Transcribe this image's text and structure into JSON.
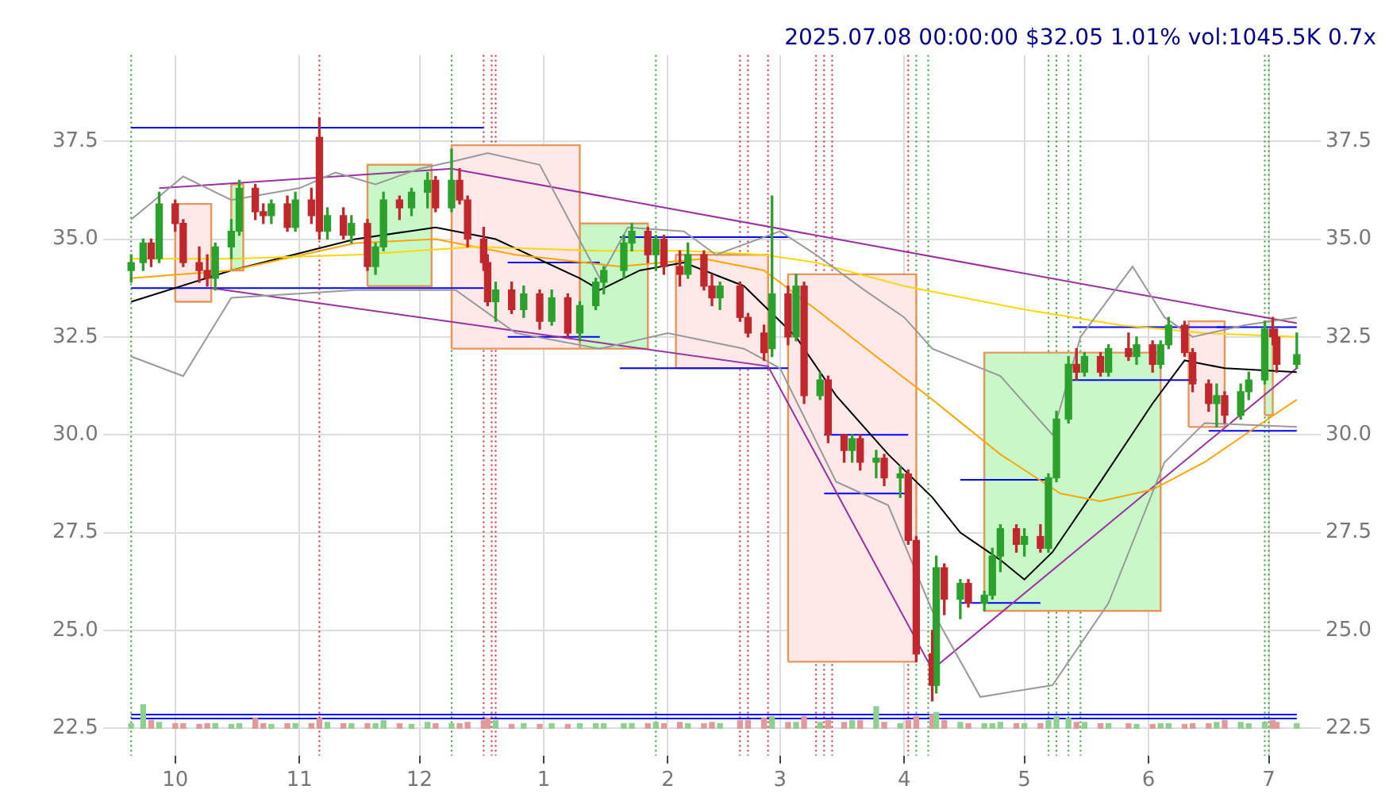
{
  "chart_data": {
    "type": "candlestick",
    "title": "2025.07.08 00:00:00 $32.05 1.01% vol:1045.5K 0.7x",
    "x": [
      "2024-09-20",
      "2024-09-23",
      "2024-09-25",
      "2024-09-27",
      "2024-10-01",
      "2024-10-03",
      "2024-10-07",
      "2024-10-09",
      "2024-10-11",
      "2024-10-15",
      "2024-10-17",
      "2024-10-21",
      "2024-10-23",
      "2024-10-25",
      "2024-10-29",
      "2024-10-31",
      "2024-11-04",
      "2024-11-06",
      "2024-11-08",
      "2024-11-12",
      "2024-11-14",
      "2024-11-18",
      "2024-11-20",
      "2024-11-22",
      "2024-11-26",
      "2024-11-29",
      "2024-12-03",
      "2024-12-05",
      "2024-12-09",
      "2024-12-11",
      "2024-12-13",
      "2024-12-17",
      "2024-12-18",
      "2024-12-20",
      "2024-12-24",
      "2024-12-27",
      "2024-12-31",
      "2025-01-03",
      "2025-01-07",
      "2025-01-10",
      "2025-01-14",
      "2025-01-16",
      "2025-01-21",
      "2025-01-23",
      "2025-01-27",
      "2025-01-29",
      "2025-01-31",
      "2025-02-04",
      "2025-02-06",
      "2025-02-10",
      "2025-02-12",
      "2025-02-14",
      "2025-02-19",
      "2025-02-21",
      "2025-02-25",
      "2025-02-27",
      "2025-03-03",
      "2025-03-05",
      "2025-03-07",
      "2025-03-11",
      "2025-03-13",
      "2025-03-17",
      "2025-03-19",
      "2025-03-21",
      "2025-03-25",
      "2025-03-27",
      "2025-03-31",
      "2025-04-02",
      "2025-04-04",
      "2025-04-08",
      "2025-04-09",
      "2025-04-11",
      "2025-04-15",
      "2025-04-17",
      "2025-04-21",
      "2025-04-23",
      "2025-04-25",
      "2025-04-29",
      "2025-05-01",
      "2025-05-05",
      "2025-05-07",
      "2025-05-09",
      "2025-05-12",
      "2025-05-14",
      "2025-05-16",
      "2025-05-20",
      "2025-05-22",
      "2025-05-27",
      "2025-05-29",
      "2025-06-02",
      "2025-06-04",
      "2025-06-06",
      "2025-06-10",
      "2025-06-12",
      "2025-06-16",
      "2025-06-18",
      "2025-06-20",
      "2025-06-24",
      "2025-06-26",
      "2025-06-30",
      "2025-07-02",
      "2025-07-03",
      "2025-07-08"
    ],
    "ohlc": [
      [
        34.2,
        34.6,
        33.9,
        34.4
      ],
      [
        34.4,
        35.0,
        34.2,
        34.9
      ],
      [
        34.9,
        35.0,
        34.3,
        34.5
      ],
      [
        34.5,
        36.2,
        34.4,
        35.9
      ],
      [
        35.9,
        36.0,
        35.2,
        35.4
      ],
      [
        35.4,
        35.5,
        34.3,
        34.4
      ],
      [
        34.4,
        34.8,
        33.9,
        34.2
      ],
      [
        34.2,
        34.6,
        33.8,
        34.0
      ],
      [
        34.0,
        34.9,
        33.7,
        34.8
      ],
      [
        34.8,
        35.5,
        34.5,
        35.2
      ],
      [
        35.2,
        36.5,
        35.1,
        36.3
      ],
      [
        36.3,
        36.4,
        35.5,
        35.7
      ],
      [
        35.7,
        35.9,
        35.4,
        35.6
      ],
      [
        35.6,
        36.0,
        35.4,
        35.9
      ],
      [
        35.9,
        36.1,
        35.2,
        35.3
      ],
      [
        35.3,
        36.2,
        35.2,
        36.0
      ],
      [
        36.0,
        36.3,
        35.4,
        35.6
      ],
      [
        37.6,
        38.1,
        35.0,
        35.2
      ],
      [
        35.2,
        35.8,
        35.0,
        35.6
      ],
      [
        35.6,
        35.8,
        35.0,
        35.1
      ],
      [
        35.1,
        35.6,
        34.9,
        35.4
      ],
      [
        35.4,
        35.5,
        34.2,
        34.3
      ],
      [
        34.3,
        34.9,
        34.1,
        34.8
      ],
      [
        34.8,
        36.2,
        34.7,
        36.0
      ],
      [
        36.0,
        36.1,
        35.5,
        35.8
      ],
      [
        35.8,
        36.3,
        35.6,
        36.2
      ],
      [
        36.2,
        36.7,
        35.8,
        36.5
      ],
      [
        36.5,
        36.6,
        35.7,
        35.8
      ],
      [
        35.8,
        37.3,
        35.7,
        36.5
      ],
      [
        36.5,
        36.8,
        35.9,
        36.0
      ],
      [
        36.0,
        36.1,
        34.8,
        35.0
      ],
      [
        35.0,
        35.3,
        34.2,
        34.4
      ],
      [
        34.4,
        34.6,
        33.3,
        33.4
      ],
      [
        33.4,
        33.9,
        32.9,
        33.7
      ],
      [
        33.7,
        33.9,
        33.1,
        33.2
      ],
      [
        33.2,
        33.8,
        33.0,
        33.6
      ],
      [
        33.6,
        33.7,
        32.7,
        32.9
      ],
      [
        32.9,
        33.7,
        32.8,
        33.5
      ],
      [
        33.5,
        33.6,
        32.5,
        32.6
      ],
      [
        32.6,
        33.4,
        32.4,
        33.3
      ],
      [
        33.3,
        34.0,
        33.2,
        33.9
      ],
      [
        33.9,
        34.3,
        33.6,
        34.2
      ],
      [
        34.2,
        35.1,
        34.0,
        34.9
      ],
      [
        34.9,
        35.4,
        34.7,
        35.2
      ],
      [
        35.2,
        35.3,
        34.4,
        34.6
      ],
      [
        34.6,
        35.1,
        34.2,
        35.0
      ],
      [
        35.0,
        35.1,
        34.1,
        34.3
      ],
      [
        34.3,
        34.7,
        33.8,
        34.1
      ],
      [
        34.1,
        34.9,
        34.0,
        34.6
      ],
      [
        34.6,
        34.7,
        33.7,
        33.8
      ],
      [
        33.8,
        34.1,
        33.3,
        33.5
      ],
      [
        33.5,
        33.9,
        33.2,
        33.8
      ],
      [
        33.8,
        33.9,
        32.9,
        33.0
      ],
      [
        33.0,
        33.1,
        32.5,
        32.6
      ],
      [
        32.6,
        32.8,
        31.9,
        32.1
      ],
      [
        32.2,
        36.1,
        32.0,
        33.6
      ],
      [
        33.6,
        33.8,
        32.3,
        32.5
      ],
      [
        32.5,
        34.1,
        32.4,
        33.8
      ],
      [
        33.8,
        33.9,
        30.8,
        31.0
      ],
      [
        31.0,
        31.6,
        30.9,
        31.4
      ],
      [
        31.4,
        31.5,
        29.8,
        30.0
      ],
      [
        30.0,
        30.0,
        29.3,
        29.6
      ],
      [
        29.6,
        30.0,
        29.3,
        29.9
      ],
      [
        29.9,
        30.0,
        29.1,
        29.3
      ],
      [
        29.3,
        29.6,
        28.9,
        29.4
      ],
      [
        29.4,
        29.5,
        28.7,
        28.9
      ],
      [
        28.9,
        29.2,
        28.4,
        29.0
      ],
      [
        29.0,
        29.1,
        27.2,
        27.3
      ],
      [
        27.3,
        27.4,
        24.2,
        24.4
      ],
      [
        24.4,
        25.0,
        23.2,
        23.6
      ],
      [
        23.6,
        26.9,
        23.4,
        26.6
      ],
      [
        26.6,
        26.7,
        25.4,
        25.8
      ],
      [
        25.8,
        26.3,
        25.3,
        26.2
      ],
      [
        26.2,
        26.3,
        25.6,
        25.7
      ],
      [
        25.7,
        26.0,
        25.5,
        25.9
      ],
      [
        25.9,
        27.1,
        25.8,
        26.9
      ],
      [
        26.9,
        27.7,
        26.5,
        27.6
      ],
      [
        27.6,
        27.7,
        27.0,
        27.2
      ],
      [
        27.2,
        27.6,
        26.9,
        27.4
      ],
      [
        27.4,
        27.7,
        27.0,
        27.1
      ],
      [
        27.1,
        29.0,
        27.0,
        28.9
      ],
      [
        28.9,
        30.6,
        28.8,
        30.4
      ],
      [
        30.4,
        32.0,
        30.3,
        31.8
      ],
      [
        31.8,
        32.2,
        31.4,
        31.6
      ],
      [
        31.6,
        32.1,
        31.5,
        32.0
      ],
      [
        32.0,
        32.1,
        31.5,
        31.6
      ],
      [
        31.6,
        32.3,
        31.5,
        32.2
      ],
      [
        32.2,
        32.6,
        31.9,
        32.0
      ],
      [
        32.0,
        32.5,
        31.8,
        32.3
      ],
      [
        32.3,
        32.4,
        31.6,
        31.8
      ],
      [
        31.8,
        32.4,
        31.7,
        32.3
      ],
      [
        32.3,
        33.0,
        32.2,
        32.8
      ],
      [
        32.8,
        32.9,
        32.0,
        32.1
      ],
      [
        32.1,
        32.2,
        31.1,
        31.3
      ],
      [
        31.3,
        31.4,
        30.6,
        30.8
      ],
      [
        30.8,
        31.3,
        30.2,
        31.0
      ],
      [
        31.0,
        31.1,
        30.3,
        30.5
      ],
      [
        30.5,
        31.3,
        30.4,
        31.1
      ],
      [
        31.1,
        31.6,
        30.9,
        31.4
      ],
      [
        31.4,
        32.9,
        31.3,
        32.7
      ],
      [
        32.7,
        33.0,
        32.3,
        32.5
      ],
      [
        32.5,
        32.7,
        31.6,
        31.8
      ],
      [
        31.8,
        32.6,
        31.7,
        32.05
      ]
    ],
    "series": [
      {
        "type": "area",
        "color": "#ffe8e8",
        "x": [
          "2024-10-01",
          "2024-10-01",
          "2024-10-10",
          "2024-10-10",
          "2024-10-01"
        ],
        "values": [
          33.4,
          35.9,
          35.9,
          33.4,
          33.4
        ]
      },
      {
        "type": "area",
        "color": "#c8f8c8",
        "x": [
          "2024-10-15",
          "2024-10-15",
          "2024-10-18",
          "2024-10-18",
          "2024-10-15"
        ],
        "values": [
          34.2,
          36.4,
          36.4,
          34.2,
          34.2
        ]
      },
      {
        "type": "area",
        "color": "#c8f8c8",
        "x": [
          "2024-11-18",
          "2024-11-18",
          "2024-12-04",
          "2024-12-04",
          "2024-11-18"
        ],
        "values": [
          33.8,
          36.9,
          36.9,
          33.8,
          33.8
        ]
      },
      {
        "type": "area",
        "color": "#ffe8e8",
        "x": [
          "2024-12-09",
          "2024-12-09",
          "2025-01-10",
          "2025-01-10",
          "2024-12-09"
        ],
        "values": [
          32.2,
          37.4,
          37.4,
          32.2,
          32.2
        ]
      },
      {
        "type": "area",
        "color": "#c8f8c8",
        "x": [
          "2025-01-10",
          "2025-01-10",
          "2025-01-27",
          "2025-01-27",
          "2025-01-10"
        ],
        "values": [
          32.2,
          35.4,
          35.4,
          32.2,
          32.2
        ]
      },
      {
        "type": "area",
        "color": "#ffe8e8",
        "x": [
          "2025-02-03",
          "2025-02-03",
          "2025-02-26",
          "2025-02-26",
          "2025-02-03"
        ],
        "values": [
          31.7,
          34.6,
          34.6,
          31.7,
          31.7
        ]
      },
      {
        "type": "area",
        "color": "#ffe8e8",
        "x": [
          "2025-03-03",
          "2025-03-03",
          "2025-04-04",
          "2025-04-04",
          "2025-03-03"
        ],
        "values": [
          24.2,
          34.1,
          34.1,
          24.2,
          24.2
        ]
      },
      {
        "type": "area",
        "color": "#c8f8c8",
        "x": [
          "2025-04-21",
          "2025-04-21",
          "2025-06-04",
          "2025-06-04",
          "2025-04-21"
        ],
        "values": [
          25.5,
          32.1,
          32.1,
          25.5,
          25.5
        ]
      },
      {
        "type": "area",
        "color": "#ffe8e8",
        "x": [
          "2025-06-11",
          "2025-06-11",
          "2025-06-20",
          "2025-06-20",
          "2025-06-11"
        ],
        "values": [
          30.2,
          32.9,
          32.9,
          30.2,
          30.2
        ]
      },
      {
        "type": "area",
        "color": "#c8f8c8",
        "x": [
          "2025-06-30",
          "2025-06-30",
          "2025-07-02",
          "2025-07-02",
          "2025-06-30"
        ],
        "values": [
          30.5,
          32.9,
          32.9,
          30.5,
          30.5
        ]
      },
      {
        "type": "line",
        "color": "#999999",
        "x": [
          "2024-09-20",
          "2024-10-03",
          "2024-10-15",
          "2024-11-01",
          "2024-11-10",
          "2024-11-20",
          "2024-12-01",
          "2024-12-10",
          "2024-12-18",
          "2024-12-31",
          "2025-01-15",
          "2025-01-22",
          "2025-02-05",
          "2025-02-13",
          "2025-03-01",
          "2025-03-10",
          "2025-03-22",
          "2025-04-01",
          "2025-04-08",
          "2025-04-25",
          "2025-05-08",
          "2025-05-15",
          "2025-05-28",
          "2025-06-05",
          "2025-06-12",
          "2025-06-25",
          "2025-07-08"
        ],
        "values": [
          35.5,
          36.6,
          36.0,
          36.3,
          36.7,
          36.4,
          36.8,
          37.0,
          37.2,
          36.9,
          34.0,
          35.3,
          35.2,
          34.6,
          35.2,
          34.6,
          33.7,
          33.0,
          32.2,
          31.5,
          30.0,
          32.5,
          34.3,
          33.0,
          32.5,
          32.8,
          33.0
        ]
      },
      {
        "type": "line",
        "color": "#999999",
        "x": [
          "2024-09-20",
          "2024-10-03",
          "2024-10-15",
          "2024-11-15",
          "2024-12-10",
          "2024-12-25",
          "2025-01-15",
          "2025-02-01",
          "2025-02-20",
          "2025-03-01",
          "2025-03-15",
          "2025-03-28",
          "2025-04-08",
          "2025-04-20",
          "2025-05-08",
          "2025-05-22",
          "2025-06-05",
          "2025-06-15",
          "2025-07-08"
        ],
        "values": [
          32.0,
          31.5,
          33.5,
          33.7,
          33.7,
          32.6,
          32.2,
          32.6,
          32.2,
          31.7,
          28.8,
          28.2,
          25.5,
          23.3,
          23.6,
          25.7,
          29.3,
          30.3,
          30.2
        ]
      },
      {
        "type": "line",
        "color": "#ffd700",
        "x": [
          "2024-09-20",
          "2024-10-15",
          "2024-11-15",
          "2024-12-15",
          "2025-01-15",
          "2025-02-05",
          "2025-02-25",
          "2025-03-10",
          "2025-04-01",
          "2025-05-01",
          "2025-05-25",
          "2025-06-15",
          "2025-07-08"
        ],
        "values": [
          34.5,
          34.5,
          34.6,
          34.8,
          34.7,
          34.7,
          34.6,
          34.4,
          33.8,
          33.2,
          32.8,
          32.6,
          32.5
        ]
      },
      {
        "type": "line",
        "color": "#ffa500",
        "x": [
          "2024-09-20",
          "2024-10-15",
          "2024-11-15",
          "2024-12-05",
          "2024-12-25",
          "2025-01-20",
          "2025-02-10",
          "2025-02-25",
          "2025-03-10",
          "2025-03-25",
          "2025-04-08",
          "2025-04-25",
          "2025-05-10",
          "2025-05-20",
          "2025-06-02",
          "2025-06-15",
          "2025-06-25",
          "2025-07-08"
        ],
        "values": [
          34.0,
          34.2,
          34.9,
          35.0,
          34.6,
          34.3,
          34.5,
          34.2,
          33.2,
          32.0,
          30.9,
          29.5,
          28.5,
          28.3,
          28.6,
          29.3,
          30.0,
          30.9
        ]
      },
      {
        "type": "line",
        "color": "#000000",
        "x": [
          "2024-09-20",
          "2024-10-15",
          "2024-11-15",
          "2024-12-05",
          "2024-12-20",
          "2025-01-10",
          "2025-01-15",
          "2025-01-25",
          "2025-02-05",
          "2025-02-20",
          "2025-03-05",
          "2025-03-15",
          "2025-03-28",
          "2025-04-08",
          "2025-04-15",
          "2025-04-25",
          "2025-05-01",
          "2025-05-08",
          "2025-05-20",
          "2025-06-02",
          "2025-06-10",
          "2025-06-20",
          "2025-07-08"
        ],
        "values": [
          33.4,
          34.2,
          35.0,
          35.3,
          35.0,
          34.0,
          33.7,
          34.2,
          34.4,
          33.8,
          32.5,
          31.0,
          29.5,
          28.4,
          27.5,
          26.8,
          26.3,
          27.0,
          28.8,
          30.8,
          31.9,
          31.7,
          31.6
        ]
      },
      {
        "type": "line",
        "color": "#9b30a0",
        "x": [
          "2024-09-27",
          "2024-12-09",
          "2025-07-08"
        ],
        "values": [
          36.3,
          36.8,
          32.85
        ]
      },
      {
        "type": "line",
        "color": "#9b30a0",
        "x": [
          "2024-10-10",
          "2025-02-26",
          "2025-04-08",
          "2025-07-08"
        ],
        "values": [
          33.75,
          31.75,
          24.0,
          31.7
        ]
      },
      {
        "type": "line",
        "color": "#0000ff",
        "x": [
          "2024-09-20",
          "2024-12-17"
        ],
        "values": [
          37.85,
          37.85
        ]
      },
      {
        "type": "line",
        "color": "#0000ff",
        "x": [
          "2024-09-20",
          "2024-12-17"
        ],
        "values": [
          33.75,
          33.75
        ]
      },
      {
        "type": "line",
        "color": "#0000ff",
        "x": [
          "2024-12-23",
          "2025-01-15"
        ],
        "values": [
          34.4,
          34.4
        ]
      },
      {
        "type": "line",
        "color": "#0000ff",
        "x": [
          "2024-12-23",
          "2025-01-15"
        ],
        "values": [
          32.5,
          32.5
        ]
      },
      {
        "type": "line",
        "color": "#0000ff",
        "x": [
          "2025-01-20",
          "2025-03-03"
        ],
        "values": [
          35.05,
          35.05
        ]
      },
      {
        "type": "line",
        "color": "#0000ff",
        "x": [
          "2025-01-20",
          "2025-03-03"
        ],
        "values": [
          31.7,
          31.7
        ]
      },
      {
        "type": "line",
        "color": "#0000ff",
        "x": [
          "2025-03-12",
          "2025-04-02"
        ],
        "values": [
          30.0,
          30.0
        ]
      },
      {
        "type": "line",
        "color": "#0000ff",
        "x": [
          "2025-03-12",
          "2025-04-02"
        ],
        "values": [
          28.5,
          28.5
        ]
      },
      {
        "type": "line",
        "color": "#0000ff",
        "x": [
          "2025-04-15",
          "2025-05-07"
        ],
        "values": [
          28.85,
          28.85
        ]
      },
      {
        "type": "line",
        "color": "#0000ff",
        "x": [
          "2025-04-15",
          "2025-05-05"
        ],
        "values": [
          25.7,
          25.7
        ]
      },
      {
        "type": "line",
        "color": "#0000ff",
        "x": [
          "2025-05-13",
          "2025-06-20"
        ],
        "values": [
          32.75,
          32.75
        ]
      },
      {
        "type": "line",
        "color": "#0000ff",
        "x": [
          "2025-05-13",
          "2025-06-13"
        ],
        "values": [
          31.4,
          31.4
        ]
      },
      {
        "type": "line",
        "color": "#0000ff",
        "x": [
          "2025-06-16",
          "2025-07-08"
        ],
        "values": [
          30.1,
          30.1
        ]
      },
      {
        "type": "line",
        "color": "#0000ff",
        "x": [
          "2025-06-18",
          "2025-07-08"
        ],
        "values": [
          32.75,
          32.75
        ]
      },
      {
        "type": "line",
        "color": "#0000ff",
        "x": [
          "2024-09-20",
          "2025-07-08"
        ],
        "values": [
          22.85,
          22.85
        ]
      },
      {
        "type": "line",
        "color": "#0000ff",
        "x": [
          "2024-09-20",
          "2025-07-08"
        ],
        "values": [
          22.75,
          22.75
        ]
      },
      {
        "type": "bar",
        "colors": [
          "#8fcf8f",
          "#8fcf8f",
          "#e09a9a",
          "#8fcf8f",
          "#e09a9a",
          "#e09a9a",
          "#e09a9a",
          "#e09a9a",
          "#8fcf8f",
          "#8fcf8f",
          "#8fcf8f",
          "#e09a9a",
          "#e09a9a",
          "#8fcf8f",
          "#e09a9a",
          "#8fcf8f",
          "#e09a9a",
          "#e09a9a",
          "#8fcf8f",
          "#e09a9a",
          "#8fcf8f",
          "#e09a9a",
          "#8fcf8f",
          "#8fcf8f",
          "#e09a9a",
          "#8fcf8f",
          "#8fcf8f",
          "#e09a9a",
          "#8fcf8f",
          "#e09a9a",
          "#e09a9a",
          "#e09a9a",
          "#e09a9a",
          "#8fcf8f",
          "#e09a9a",
          "#8fcf8f",
          "#e09a9a",
          "#8fcf8f",
          "#e09a9a",
          "#8fcf8f",
          "#8fcf8f",
          "#8fcf8f",
          "#8fcf8f",
          "#8fcf8f",
          "#e09a9a",
          "#8fcf8f",
          "#e09a9a",
          "#e09a9a",
          "#8fcf8f",
          "#e09a9a",
          "#e09a9a",
          "#8fcf8f",
          "#e09a9a",
          "#e09a9a",
          "#e09a9a",
          "#8fcf8f",
          "#e09a9a",
          "#8fcf8f",
          "#e09a9a",
          "#8fcf8f",
          "#e09a9a",
          "#e09a9a",
          "#8fcf8f",
          "#e09a9a",
          "#8fcf8f",
          "#e09a9a",
          "#8fcf8f",
          "#e09a9a",
          "#e09a9a",
          "#e09a9a",
          "#8fcf8f",
          "#e09a9a",
          "#8fcf8f",
          "#e09a9a",
          "#8fcf8f",
          "#8fcf8f",
          "#8fcf8f",
          "#e09a9a",
          "#8fcf8f",
          "#e09a9a",
          "#8fcf8f",
          "#8fcf8f",
          "#8fcf8f",
          "#e09a9a",
          "#8fcf8f",
          "#e09a9a",
          "#8fcf8f",
          "#e09a9a",
          "#8fcf8f",
          "#e09a9a",
          "#8fcf8f",
          "#8fcf8f",
          "#e09a9a",
          "#e09a9a",
          "#e09a9a",
          "#8fcf8f",
          "#e09a9a",
          "#8fcf8f",
          "#8fcf8f",
          "#8fcf8f",
          "#e09a9a",
          "#e09a9a",
          "#8fcf8f"
        ],
        "values": [
          0.12,
          0.6,
          0.2,
          0.15,
          0.12,
          0.12,
          0.1,
          0.12,
          0.12,
          0.1,
          0.12,
          0.25,
          0.12,
          0.1,
          0.12,
          0.12,
          0.12,
          0.25,
          0.15,
          0.12,
          0.12,
          0.12,
          0.12,
          0.2,
          0.12,
          0.1,
          0.15,
          0.12,
          0.12,
          0.12,
          0.15,
          0.2,
          0.25,
          0.2,
          0.1,
          0.12,
          0.1,
          0.12,
          0.1,
          0.12,
          0.12,
          0.12,
          0.12,
          0.12,
          0.12,
          0.15,
          0.12,
          0.15,
          0.12,
          0.12,
          0.15,
          0.12,
          0.2,
          0.2,
          0.25,
          0.3,
          0.15,
          0.15,
          0.3,
          0.15,
          0.2,
          0.15,
          0.2,
          0.2,
          0.55,
          0.15,
          0.12,
          0.2,
          0.3,
          0.35,
          0.4,
          0.2,
          0.15,
          0.12,
          0.12,
          0.12,
          0.15,
          0.12,
          0.12,
          0.12,
          0.2,
          0.3,
          0.25,
          0.15,
          0.15,
          0.12,
          0.12,
          0.12,
          0.1,
          0.1,
          0.12,
          0.12,
          0.1,
          0.12,
          0.12,
          0.15,
          0.2,
          0.15,
          0.12,
          0.15,
          0.2,
          0.15,
          0.12
        ],
        "base": [
          22.5,
          22.5,
          22.5,
          22.5,
          22.5,
          22.5,
          22.5,
          22.5,
          22.5,
          22.5,
          22.5,
          22.5,
          22.5,
          22.5,
          22.5,
          22.5,
          22.5,
          22.5,
          22.5,
          22.5,
          22.5,
          22.5,
          22.5,
          22.5,
          22.5,
          22.5,
          22.5,
          22.5,
          22.5,
          22.5,
          22.5,
          22.5,
          22.5,
          22.5,
          22.5,
          22.5,
          22.5,
          22.5,
          22.5,
          22.5,
          22.5,
          22.5,
          22.5,
          22.5,
          22.5,
          22.5,
          22.5,
          22.5,
          22.5,
          22.5,
          22.5,
          22.5,
          22.5,
          22.5,
          22.5,
          22.5,
          22.5,
          22.5,
          22.5,
          22.5,
          22.5,
          22.5,
          22.5,
          22.5,
          22.5,
          22.5,
          22.5,
          22.5,
          22.5,
          22.5,
          22.5,
          22.5,
          22.5,
          22.5,
          22.5,
          22.5,
          22.5,
          22.5,
          22.5,
          22.5,
          22.5,
          22.5,
          22.5,
          22.5,
          22.5,
          22.5,
          22.5,
          22.5,
          22.5,
          22.5,
          22.5,
          22.5,
          22.5,
          22.5,
          22.5,
          22.5,
          22.5,
          22.5,
          22.5,
          22.5,
          22.5,
          22.5,
          22.5
        ]
      }
    ],
    "ref_lines": [
      {
        "axis": "x",
        "value": "2024-09-20",
        "color": "#2ca02c",
        "line_style": "dotted"
      },
      {
        "axis": "x",
        "value": "2024-11-06",
        "color": "#d62728",
        "line_style": "dotted"
      },
      {
        "axis": "x",
        "value": "2024-12-09",
        "color": "#2ca02c",
        "line_style": "dotted"
      },
      {
        "axis": "x",
        "value": "2024-12-17",
        "color": "#d62728",
        "line_style": "dotted"
      },
      {
        "axis": "x",
        "value": "2024-12-19",
        "color": "#d62728",
        "line_style": "dotted"
      },
      {
        "axis": "x",
        "value": "2024-12-20",
        "color": "#d62728",
        "line_style": "dotted"
      },
      {
        "axis": "x",
        "value": "2025-01-29",
        "color": "#2ca02c",
        "line_style": "dotted"
      },
      {
        "axis": "x",
        "value": "2025-02-19",
        "color": "#d62728",
        "line_style": "dotted"
      },
      {
        "axis": "x",
        "value": "2025-02-21",
        "color": "#d62728",
        "line_style": "dotted"
      },
      {
        "axis": "x",
        "value": "2025-02-26",
        "color": "#d62728",
        "line_style": "dotted"
      },
      {
        "axis": "x",
        "value": "2025-03-10",
        "color": "#d62728",
        "line_style": "dotted"
      },
      {
        "axis": "x",
        "value": "2025-03-12",
        "color": "#d62728",
        "line_style": "dotted"
      },
      {
        "axis": "x",
        "value": "2025-03-14",
        "color": "#d62728",
        "line_style": "dotted"
      },
      {
        "axis": "x",
        "value": "2025-04-02",
        "color": "#d62728",
        "line_style": "dotted"
      },
      {
        "axis": "x",
        "value": "2025-04-04",
        "color": "#2ca02c",
        "line_style": "dotted"
      },
      {
        "axis": "x",
        "value": "2025-04-07",
        "color": "#2ca02c",
        "line_style": "dotted"
      },
      {
        "axis": "x",
        "value": "2025-05-07",
        "color": "#2ca02c",
        "line_style": "dotted"
      },
      {
        "axis": "x",
        "value": "2025-05-09",
        "color": "#2ca02c",
        "line_style": "dotted"
      },
      {
        "axis": "x",
        "value": "2025-05-12",
        "color": "#2ca02c",
        "line_style": "dotted"
      },
      {
        "axis": "x",
        "value": "2025-05-15",
        "color": "#2ca02c",
        "line_style": "dotted"
      },
      {
        "axis": "x",
        "value": "2025-06-30",
        "color": "#2ca02c",
        "line_style": "dotted"
      },
      {
        "axis": "x",
        "value": "2025-07-01",
        "color": "#2ca02c",
        "line_style": "dotted"
      }
    ],
    "xlim": [
      "2024-09-13",
      "2025-07-14"
    ],
    "xticks": [
      {
        "value": "2024-10-01",
        "label": "10"
      },
      {
        "value": "2024-11-01",
        "label": "11"
      },
      {
        "value": "2024-12-01",
        "label": "12"
      },
      {
        "value": "2025-01-01",
        "label": "1"
      },
      {
        "value": "2025-02-01",
        "label": "2"
      },
      {
        "value": "2025-03-01",
        "label": "3"
      },
      {
        "value": "2025-04-01",
        "label": "4"
      },
      {
        "value": "2025-05-01",
        "label": "5"
      },
      {
        "value": "2025-06-01",
        "label": "6"
      },
      {
        "value": "2025-07-01",
        "label": "7"
      }
    ],
    "ylim": [
      21.8,
      39.7
    ],
    "yticks": [
      22.5,
      {
        "value": 25,
        "label": "25.0"
      },
      27.5,
      {
        "value": 30,
        "label": "30.0"
      },
      32.5,
      {
        "value": 35,
        "label": "35.0"
      },
      37.5
    ],
    "y2lim": [
      21.8,
      39.7
    ],
    "y2ticks": [
      22.5,
      {
        "value": 25,
        "label": "25.0"
      },
      27.5,
      {
        "value": 30,
        "label": "30.0"
      },
      32.5,
      {
        "value": 35,
        "label": "35.0"
      },
      37.5
    ],
    "grid": true
  }
}
